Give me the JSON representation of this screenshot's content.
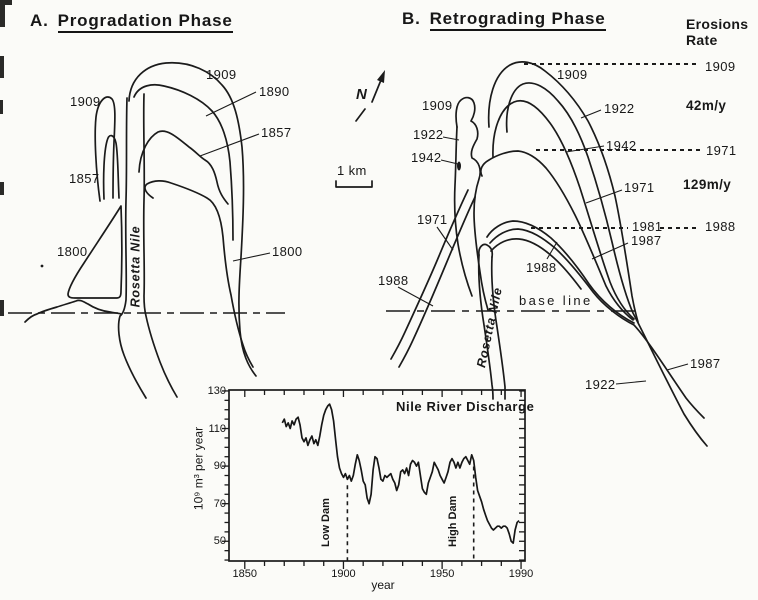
{
  "panel_a": {
    "letter": "A.",
    "title": "Progradation Phase",
    "river_label": "Rosetta Nile",
    "shoreline_labels": {
      "west_1909": "1909",
      "west_1857": "1857",
      "west_1800": "1800",
      "crest_1909": "1909",
      "right_1890": "1890",
      "right_1857": "1857",
      "right_1800": "1800"
    }
  },
  "panel_b": {
    "letter": "B.",
    "title": "Retrograding Phase",
    "river_label": "Rosetta Nile",
    "base_line_label": "base line",
    "erosion_header_line1": "Erosions",
    "erosion_header_line2": "Rate",
    "shoreline_labels": {
      "west_1909": "1909",
      "west_1922": "1922",
      "west_1942": "1942",
      "west_1971": "1971",
      "west_1988": "1988",
      "crest_1909": "1909",
      "right_1922": "1922",
      "right_1942": "1942",
      "right_1971": "1971",
      "right_1981": "1981",
      "right_1987": "1987",
      "center_1988": "1988",
      "tail_1987": "1987",
      "tail_1922": "1922"
    },
    "erosion_scale": {
      "ref_1909": "1909",
      "rate_top": "42m/y",
      "ref_1971": "1971",
      "rate_bottom": "129m/y",
      "ref_1988": "1988"
    }
  },
  "map_furniture": {
    "north_label": "N",
    "scale_label": "1 km"
  },
  "chart_data": {
    "type": "line",
    "title": "Nile River Discharge",
    "xlabel": "year",
    "ylabel": "10⁹ m³ per year",
    "xlim": [
      1842,
      1992
    ],
    "ylim": [
      39.5,
      130.5
    ],
    "x_ticks_labeled": [
      1850,
      1900,
      1950,
      1990
    ],
    "x_minor_step": 10,
    "y_ticks_labeled": [
      130,
      110,
      90,
      70,
      50
    ],
    "y_minor_step": 5,
    "grid": false,
    "annotations": [
      {
        "label": "Low Dam",
        "year": 1902
      },
      {
        "label": "High Dam",
        "year": 1966
      }
    ],
    "series": [
      {
        "name": "Nile River Discharge",
        "points": [
          [
            1869,
            113
          ],
          [
            1870,
            115
          ],
          [
            1871,
            111
          ],
          [
            1872,
            113
          ],
          [
            1873,
            110
          ],
          [
            1874,
            114
          ],
          [
            1875,
            112
          ],
          [
            1876,
            115
          ],
          [
            1877,
            116
          ],
          [
            1878,
            112
          ],
          [
            1879,
            105
          ],
          [
            1880,
            103
          ],
          [
            1881,
            105
          ],
          [
            1882,
            101
          ],
          [
            1883,
            104
          ],
          [
            1884,
            106
          ],
          [
            1885,
            102
          ],
          [
            1886,
            104
          ],
          [
            1887,
            101
          ],
          [
            1888,
            106
          ],
          [
            1889,
            112
          ],
          [
            1890,
            117
          ],
          [
            1891,
            120
          ],
          [
            1892,
            122
          ],
          [
            1893,
            123
          ],
          [
            1894,
            120
          ],
          [
            1895,
            114
          ],
          [
            1896,
            104
          ],
          [
            1897,
            95
          ],
          [
            1898,
            89
          ],
          [
            1899,
            86
          ],
          [
            1900,
            84
          ],
          [
            1901,
            86
          ],
          [
            1902,
            83
          ],
          [
            1903,
            85
          ],
          [
            1904,
            82
          ],
          [
            1905,
            85
          ],
          [
            1906,
            91
          ],
          [
            1907,
            96
          ],
          [
            1908,
            93
          ],
          [
            1909,
            88
          ],
          [
            1910,
            82
          ],
          [
            1911,
            80
          ],
          [
            1912,
            73
          ],
          [
            1913,
            70
          ],
          [
            1914,
            75
          ],
          [
            1915,
            88
          ],
          [
            1916,
            95
          ],
          [
            1917,
            94
          ],
          [
            1918,
            89
          ],
          [
            1919,
            83
          ],
          [
            1920,
            82
          ],
          [
            1921,
            85
          ],
          [
            1922,
            84
          ],
          [
            1923,
            85
          ],
          [
            1924,
            86
          ],
          [
            1925,
            83
          ],
          [
            1926,
            81
          ],
          [
            1927,
            77
          ],
          [
            1928,
            80
          ],
          [
            1929,
            87
          ],
          [
            1930,
            88
          ],
          [
            1931,
            86
          ],
          [
            1932,
            89
          ],
          [
            1933,
            85
          ],
          [
            1934,
            91
          ],
          [
            1935,
            93
          ],
          [
            1936,
            92
          ],
          [
            1937,
            90
          ],
          [
            1938,
            92
          ],
          [
            1939,
            85
          ],
          [
            1940,
            78
          ],
          [
            1941,
            76
          ],
          [
            1942,
            75
          ],
          [
            1943,
            81
          ],
          [
            1944,
            84
          ],
          [
            1945,
            87
          ],
          [
            1946,
            92
          ],
          [
            1947,
            90
          ],
          [
            1948,
            88
          ],
          [
            1949,
            85
          ],
          [
            1950,
            83
          ],
          [
            1951,
            81
          ],
          [
            1952,
            84
          ],
          [
            1953,
            87
          ],
          [
            1954,
            92
          ],
          [
            1955,
            94
          ],
          [
            1956,
            92
          ],
          [
            1957,
            89
          ],
          [
            1958,
            92
          ],
          [
            1959,
            89
          ],
          [
            1960,
            92
          ],
          [
            1961,
            94
          ],
          [
            1962,
            95
          ],
          [
            1963,
            93
          ],
          [
            1964,
            91
          ],
          [
            1965,
            96
          ],
          [
            1966,
            93
          ],
          [
            1967,
            84
          ],
          [
            1968,
            77
          ],
          [
            1969,
            74
          ],
          [
            1970,
            71
          ],
          [
            1971,
            67
          ],
          [
            1972,
            64
          ],
          [
            1973,
            61
          ],
          [
            1974,
            59
          ],
          [
            1975,
            57
          ],
          [
            1976,
            56
          ],
          [
            1977,
            57
          ],
          [
            1978,
            58
          ],
          [
            1979,
            58
          ],
          [
            1980,
            57
          ],
          [
            1981,
            58
          ],
          [
            1982,
            58
          ],
          [
            1983,
            57
          ],
          [
            1984,
            54
          ],
          [
            1985,
            50
          ],
          [
            1986,
            49
          ],
          [
            1987,
            56
          ],
          [
            1988,
            60
          ],
          [
            1989,
            61
          ]
        ]
      }
    ]
  }
}
